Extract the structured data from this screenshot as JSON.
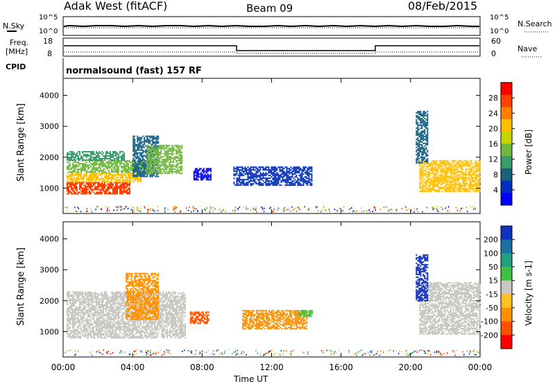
{
  "header": {
    "station": "Adak West (fitACF)",
    "beam": "Beam 09",
    "date": "08/Feb/2015"
  },
  "top_panels": {
    "left_labels": {
      "nsky": "N.Sky",
      "freq": "Freq.",
      "freq_unit": "[MHz]",
      "cpid": "CPID"
    },
    "right_labels": {
      "nsearch": "N.Search",
      "nave": "Nave"
    },
    "noise_ticks_left": [
      "10^5",
      "10^0"
    ],
    "noise_ticks_right": [
      "10^5",
      "10^0"
    ],
    "freq_ticks_left": [
      "18",
      "8"
    ],
    "nave_ticks_right": [
      "60",
      "0"
    ],
    "cpid_text": "normalsound (fast) 157 RF"
  },
  "colorbars": {
    "power": {
      "label": "Power [dB]",
      "ticks": [
        "28",
        "24",
        "20",
        "16",
        "12",
        "8",
        "4"
      ],
      "colors": [
        "#ff0000",
        "#ff4000",
        "#ff8000",
        "#ffbf00",
        "#c8d400",
        "#70b840",
        "#3a9a6a",
        "#1a6080",
        "#0030c0",
        "#0000ff"
      ]
    },
    "velocity": {
      "label": "Velocity [m s-1]",
      "ticks": [
        "200",
        "100",
        "50",
        "15",
        "-15",
        "-50",
        "-100",
        "-200"
      ],
      "colors": [
        "#1030c0",
        "#1a70a0",
        "#20a080",
        "#40c040",
        "#c8c8c0",
        "#ffc020",
        "#ff9000",
        "#ff5000",
        "#ff0000"
      ]
    }
  },
  "chart_data": [
    {
      "type": "heatmap",
      "name": "power",
      "ylabel": "Slant Range [km]",
      "yticks": [
        "4000",
        "3000",
        "2000",
        "1000"
      ],
      "ylim": [
        180,
        4550
      ],
      "xlim": [
        0,
        24
      ],
      "regions": [
        {
          "t": [
            0.2,
            3.8
          ],
          "r": [
            800,
            1200
          ],
          "level": 28
        },
        {
          "t": [
            0.2,
            4.5
          ],
          "r": [
            1200,
            1500
          ],
          "level": 22
        },
        {
          "t": [
            0.2,
            5.0
          ],
          "r": [
            1500,
            1900
          ],
          "level": 16
        },
        {
          "t": [
            0.2,
            3.5
          ],
          "r": [
            1900,
            2200
          ],
          "level": 12
        },
        {
          "t": [
            4.0,
            5.5
          ],
          "r": [
            1400,
            2700
          ],
          "level": 10
        },
        {
          "t": [
            4.8,
            6.8
          ],
          "r": [
            1500,
            2400
          ],
          "level": 14
        },
        {
          "t": [
            7.5,
            8.5
          ],
          "r": [
            1250,
            1650
          ],
          "level": 4
        },
        {
          "t": [
            9.8,
            14.3
          ],
          "r": [
            1100,
            1700
          ],
          "level": 5
        },
        {
          "t": [
            20.5,
            24.0
          ],
          "r": [
            900,
            1900
          ],
          "level": 22
        },
        {
          "t": [
            20.3,
            21.0
          ],
          "r": [
            1800,
            3500
          ],
          "level": 8
        }
      ]
    },
    {
      "type": "heatmap",
      "name": "velocity",
      "ylabel": "Slant Range [km]",
      "yticks": [
        "4000",
        "3000",
        "2000",
        "1000"
      ],
      "ylim": [
        180,
        4550
      ],
      "xlim": [
        0,
        24
      ],
      "xticks": [
        "00:00",
        "04:00",
        "08:00",
        "12:00",
        "16:00",
        "20:00",
        "00:00"
      ],
      "xlabel": "Time UT",
      "regions": [
        {
          "t": [
            0.2,
            7.0
          ],
          "r": [
            800,
            2300
          ],
          "v": 0
        },
        {
          "t": [
            3.6,
            5.5
          ],
          "r": [
            1400,
            2900
          ],
          "v": -60
        },
        {
          "t": [
            7.3,
            8.4
          ],
          "r": [
            1250,
            1650
          ],
          "v": -200
        },
        {
          "t": [
            10.3,
            14.0
          ],
          "r": [
            1100,
            1700
          ],
          "v": -70
        },
        {
          "t": [
            13.5,
            14.3
          ],
          "r": [
            1500,
            1700
          ],
          "v": 30
        },
        {
          "t": [
            20.5,
            24.0
          ],
          "r": [
            900,
            2600
          ],
          "v": 0
        },
        {
          "t": [
            20.3,
            21.0
          ],
          "r": [
            2000,
            3500
          ],
          "v": 200
        }
      ]
    }
  ]
}
